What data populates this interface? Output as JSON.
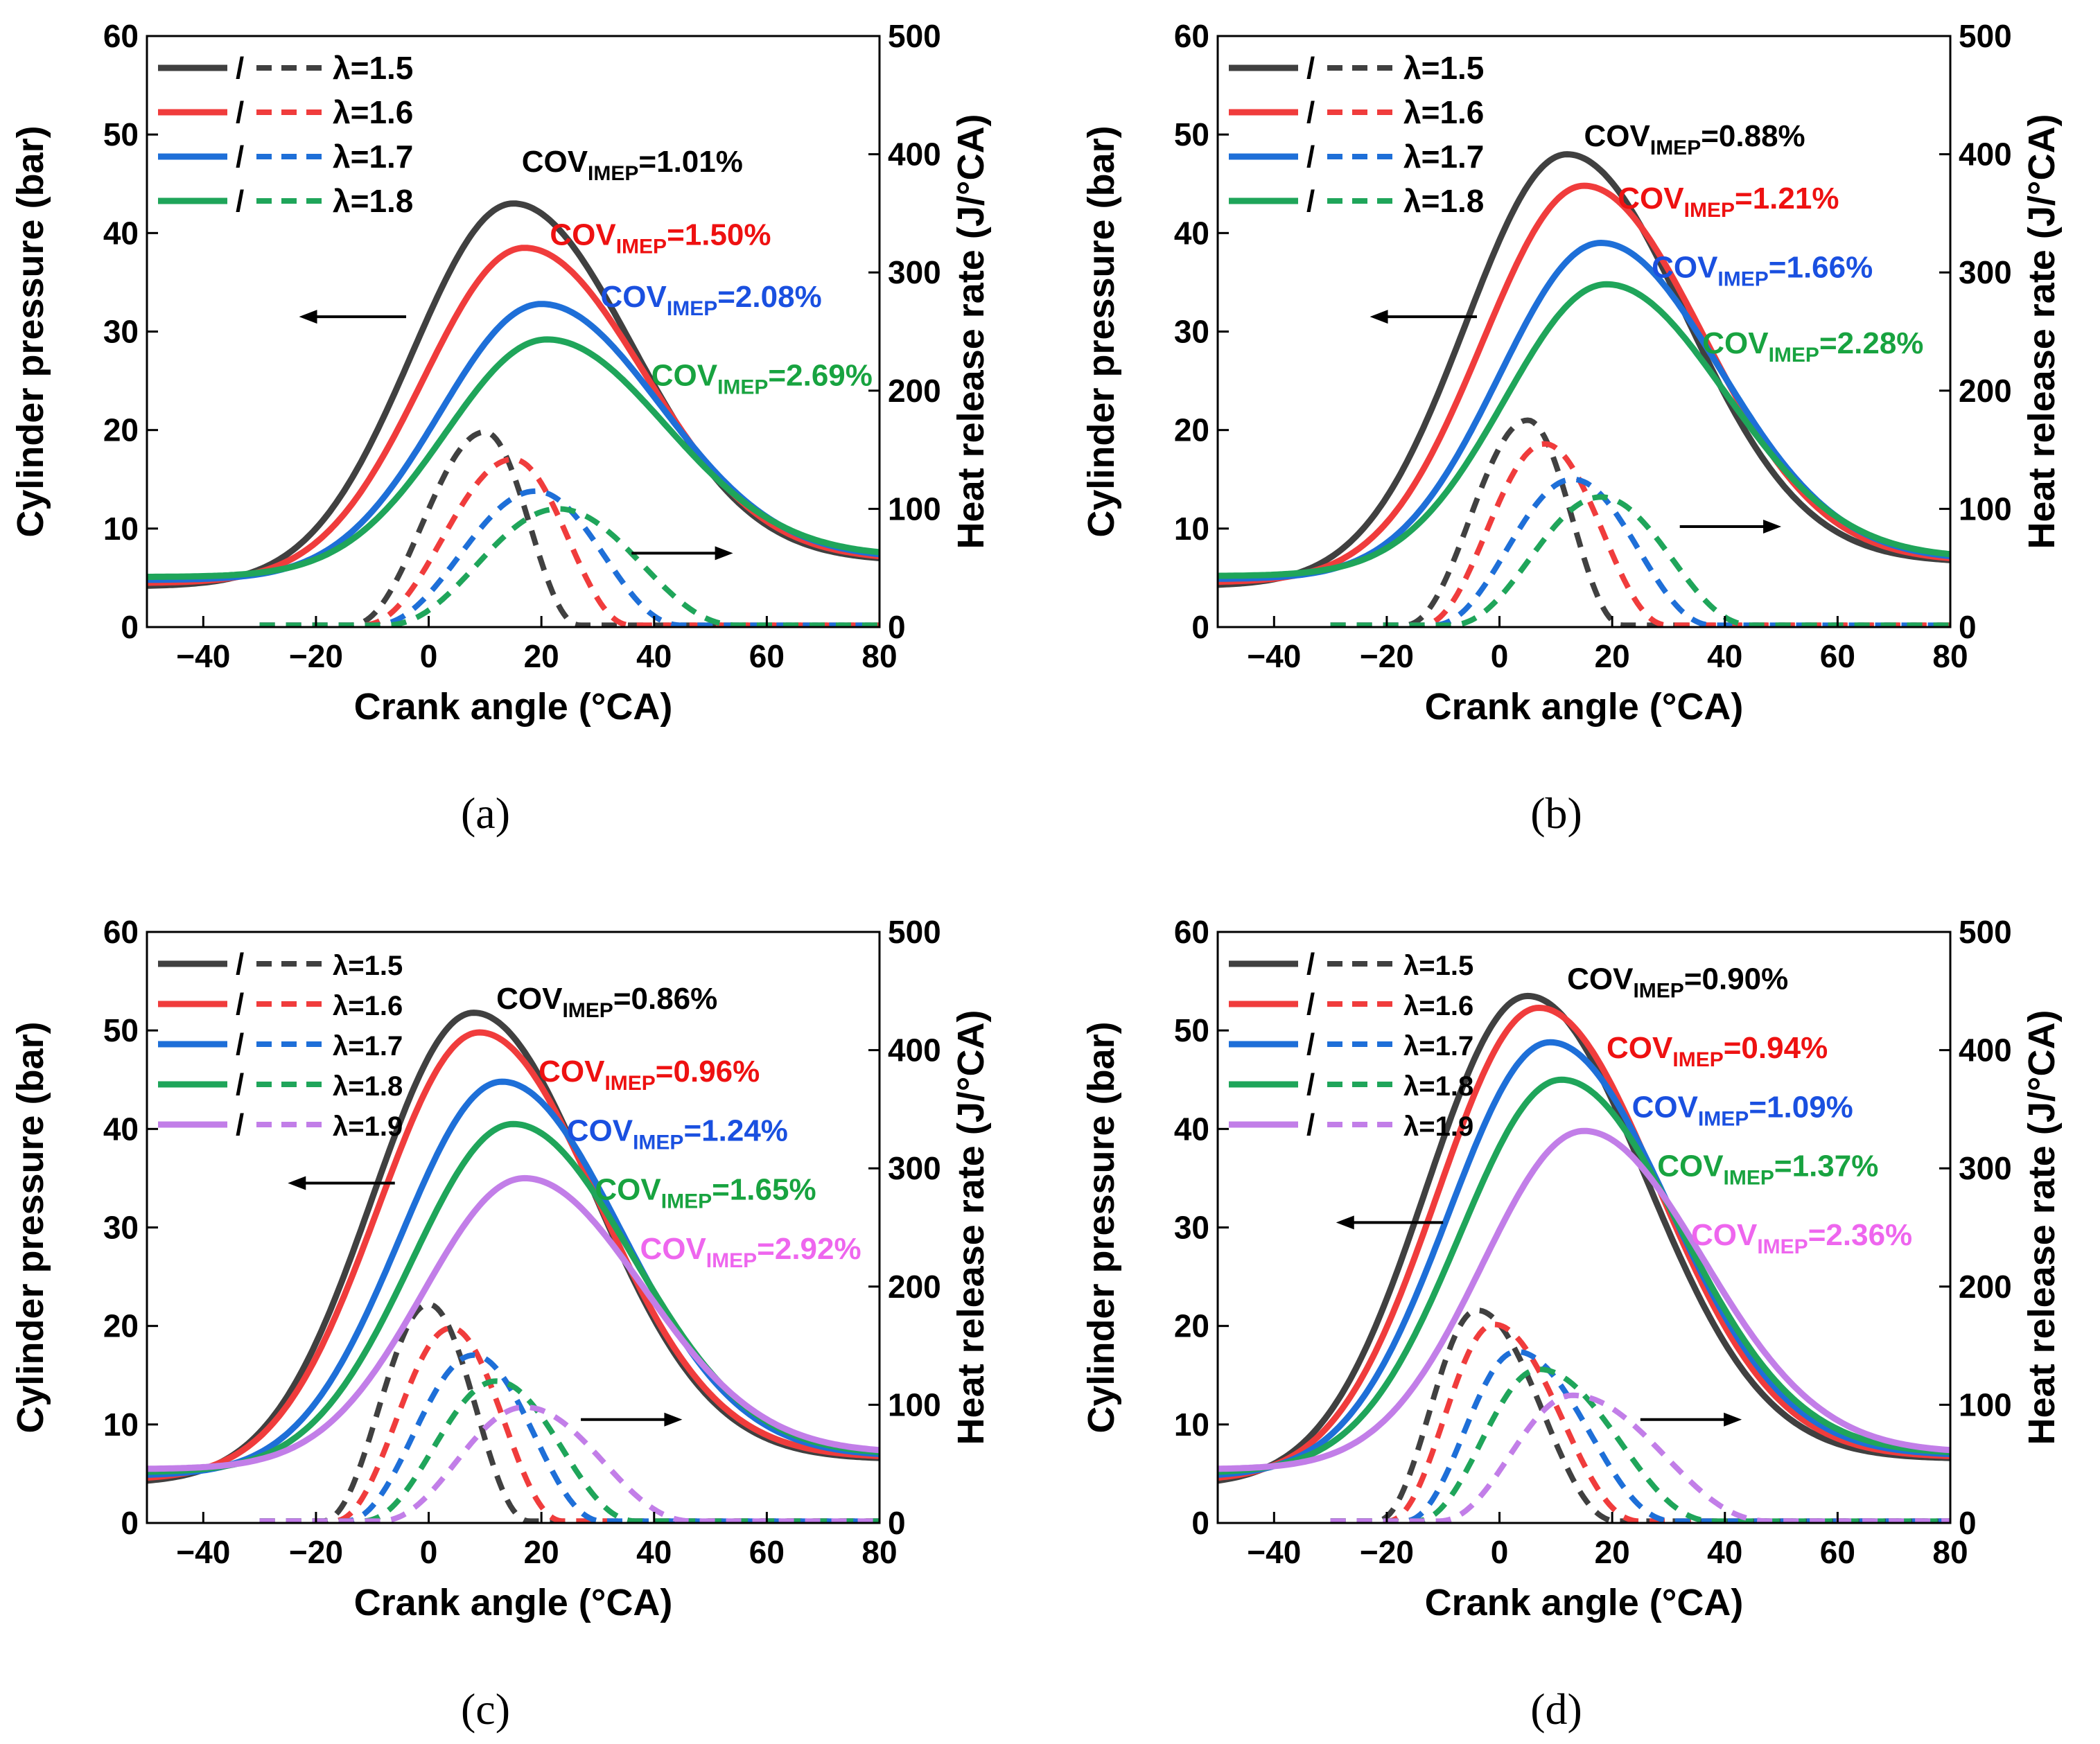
{
  "colors": {
    "1.5": "#404040",
    "1.6": "#f03c3c",
    "1.7": "#1e6fd8",
    "1.8": "#1fa55a",
    "1.9": "#c27ee8",
    "cov_1.5": "#000000",
    "cov_1.6": "#ee1111",
    "cov_1.7": "#1a50e0",
    "cov_1.8": "#18a340",
    "cov_1.9": "#ee66ee"
  },
  "chart_data": [
    {
      "id": "a",
      "caption": "(a)",
      "type": "line",
      "xlabel": "Crank angle (°CA)",
      "ylabel_left": "Cylinder pressure (bar)",
      "ylabel_right": "Heat release rate (J/°CA)",
      "xlim": [
        -50,
        80
      ],
      "xticks": [
        -40,
        -20,
        0,
        20,
        40,
        60,
        80
      ],
      "ylim_left": [
        0,
        60
      ],
      "yticks_left": [
        0,
        10,
        20,
        30,
        40,
        50,
        60
      ],
      "ylim_right": [
        0,
        500
      ],
      "yticks_right": [
        0,
        100,
        200,
        300,
        400,
        500
      ],
      "legend": {
        "position": "top-left",
        "separator": "/",
        "entries": [
          "λ=1.5",
          "λ=1.6",
          "λ=1.7",
          "λ=1.8"
        ]
      },
      "arrows": [
        {
          "direction": "left",
          "x_from": -4,
          "x_to": -23,
          "y": 31.5
        },
        {
          "direction": "right",
          "x_from": 36,
          "x_to": 54,
          "y": 7.5
        }
      ],
      "series": [
        {
          "lambda": "1.5",
          "pressure": {
            "peak_ca": 15,
            "peak": 43.0,
            "start": 4.2,
            "end": 7.0
          },
          "hrr": {
            "peak_ca": 10,
            "peak": 165,
            "start_ca": -14,
            "end_ca": 27
          },
          "cov": {
            "label": "COV",
            "sub": "IMEP",
            "value": "=1.01%",
            "x": 16.5,
            "y": 46.2
          }
        },
        {
          "lambda": "1.6",
          "pressure": {
            "peak_ca": 17,
            "peak": 38.5,
            "start": 4.5,
            "end": 7.2
          },
          "hrr": {
            "peak_ca": 15,
            "peak": 142,
            "start_ca": -12,
            "end_ca": 36
          },
          "cov": {
            "label": "COV",
            "sub": "IMEP",
            "value": "=1.50%",
            "x": 21.5,
            "y": 38.8
          }
        },
        {
          "lambda": "1.7",
          "pressure": {
            "peak_ca": 20,
            "peak": 32.8,
            "start": 4.8,
            "end": 7.4
          },
          "hrr": {
            "peak_ca": 19,
            "peak": 115,
            "start_ca": -10,
            "end_ca": 45
          },
          "cov": {
            "label": "COV",
            "sub": "IMEP",
            "value": "=2.08%",
            "x": 30.5,
            "y": 32.5
          }
        },
        {
          "lambda": "1.8",
          "pressure": {
            "peak_ca": 21,
            "peak": 29.2,
            "start": 5.1,
            "end": 7.6
          },
          "hrr": {
            "peak_ca": 23,
            "peak": 100,
            "start_ca": -8,
            "end_ca": 55
          },
          "cov": {
            "label": "COV",
            "sub": "IMEP",
            "value": "=2.69%",
            "x": 39.5,
            "y": 24.5
          }
        }
      ]
    },
    {
      "id": "b",
      "caption": "(b)",
      "type": "line",
      "xlabel": "Crank angle (°CA)",
      "ylabel_left": "Cylinder pressure (bar)",
      "ylabel_right": "Heat release rate (J/°CA)",
      "xlim": [
        -50,
        80
      ],
      "xticks": [
        -40,
        -20,
        0,
        20,
        40,
        60,
        80
      ],
      "ylim_left": [
        0,
        60
      ],
      "yticks_left": [
        0,
        10,
        20,
        30,
        40,
        50,
        60
      ],
      "ylim_right": [
        0,
        500
      ],
      "yticks_right": [
        0,
        100,
        200,
        300,
        400,
        500
      ],
      "legend": {
        "position": "top-left",
        "separator": "/",
        "entries": [
          "λ=1.5",
          "λ=1.6",
          "λ=1.7",
          "λ=1.8"
        ]
      },
      "arrows": [
        {
          "direction": "left",
          "x_from": -4,
          "x_to": -23,
          "y": 31.5
        },
        {
          "direction": "right",
          "x_from": 32,
          "x_to": 50,
          "y": 10.2
        }
      ],
      "series": [
        {
          "lambda": "1.5",
          "pressure": {
            "peak_ca": 12,
            "peak": 48.0,
            "start": 4.3,
            "end": 6.8
          },
          "hrr": {
            "peak_ca": 5,
            "peak": 175,
            "start_ca": -17,
            "end_ca": 22
          },
          "cov": {
            "label": "COV",
            "sub": "IMEP",
            "value": "=0.88%",
            "x": 15,
            "y": 48.8
          }
        },
        {
          "lambda": "1.6",
          "pressure": {
            "peak_ca": 15,
            "peak": 44.8,
            "start": 4.6,
            "end": 7.0
          },
          "hrr": {
            "peak_ca": 8,
            "peak": 155,
            "start_ca": -14,
            "end_ca": 30
          },
          "cov": {
            "label": "COV",
            "sub": "IMEP",
            "value": "=1.21%",
            "x": 21,
            "y": 42.5
          }
        },
        {
          "lambda": "1.7",
          "pressure": {
            "peak_ca": 18,
            "peak": 39.0,
            "start": 4.9,
            "end": 7.2
          },
          "hrr": {
            "peak_ca": 13,
            "peak": 125,
            "start_ca": -12,
            "end_ca": 38
          },
          "cov": {
            "label": "COV",
            "sub": "IMEP",
            "value": "=1.66%",
            "x": 27,
            "y": 35.5
          }
        },
        {
          "lambda": "1.8",
          "pressure": {
            "peak_ca": 19,
            "peak": 34.8,
            "start": 5.2,
            "end": 7.4
          },
          "hrr": {
            "peak_ca": 18,
            "peak": 110,
            "start_ca": -9,
            "end_ca": 45
          },
          "cov": {
            "label": "COV",
            "sub": "IMEP",
            "value": "=2.28%",
            "x": 36,
            "y": 27.8
          }
        }
      ]
    },
    {
      "id": "c",
      "caption": "(c)",
      "type": "line",
      "xlabel": "Crank angle (°CA)",
      "ylabel_left": "Cylinder pressure (bar)",
      "ylabel_right": "Heat release rate (J/°CA)",
      "xlim": [
        -50,
        80
      ],
      "xticks": [
        -40,
        -20,
        0,
        20,
        40,
        60,
        80
      ],
      "ylim_left": [
        0,
        60
      ],
      "yticks_left": [
        0,
        10,
        20,
        30,
        40,
        50,
        60
      ],
      "ylim_right": [
        0,
        500
      ],
      "yticks_right": [
        0,
        100,
        200,
        300,
        400,
        500
      ],
      "legend": {
        "position": "top-left",
        "separator": "/",
        "entries": [
          "λ=1.5",
          "λ=1.6",
          "λ=1.7",
          "λ=1.8",
          "λ=1.9"
        ]
      },
      "arrows": [
        {
          "direction": "left",
          "x_from": -6,
          "x_to": -25,
          "y": 34.5
        },
        {
          "direction": "right",
          "x_from": 27,
          "x_to": 45,
          "y": 10.5
        }
      ],
      "series": [
        {
          "lambda": "1.5",
          "pressure": {
            "peak_ca": 8,
            "peak": 51.8,
            "start": 4.3,
            "end": 6.6
          },
          "hrr": {
            "peak_ca": 0,
            "peak": 185,
            "start_ca": -19,
            "end_ca": 18
          },
          "cov": {
            "label": "COV",
            "sub": "IMEP",
            "value": "=0.86%",
            "x": 12,
            "y": 52.2
          }
        },
        {
          "lambda": "1.6",
          "pressure": {
            "peak_ca": 9,
            "peak": 49.8,
            "start": 4.6,
            "end": 6.8
          },
          "hrr": {
            "peak_ca": 4,
            "peak": 165,
            "start_ca": -17,
            "end_ca": 24
          },
          "cov": {
            "label": "COV",
            "sub": "IMEP",
            "value": "=0.96%",
            "x": 19.5,
            "y": 44.8
          }
        },
        {
          "lambda": "1.7",
          "pressure": {
            "peak_ca": 13,
            "peak": 44.8,
            "start": 4.9,
            "end": 7.0
          },
          "hrr": {
            "peak_ca": 8,
            "peak": 142,
            "start_ca": -15,
            "end_ca": 31
          },
          "cov": {
            "label": "COV",
            "sub": "IMEP",
            "value": "=1.24%",
            "x": 24.5,
            "y": 38.8
          }
        },
        {
          "lambda": "1.8",
          "pressure": {
            "peak_ca": 15,
            "peak": 40.5,
            "start": 5.2,
            "end": 7.2
          },
          "hrr": {
            "peak_ca": 12,
            "peak": 120,
            "start_ca": -12,
            "end_ca": 37
          },
          "cov": {
            "label": "COV",
            "sub": "IMEP",
            "value": "=1.65%",
            "x": 29.5,
            "y": 32.8
          }
        },
        {
          "lambda": "1.9",
          "pressure": {
            "peak_ca": 17,
            "peak": 35.0,
            "start": 5.5,
            "end": 7.4
          },
          "hrr": {
            "peak_ca": 17,
            "peak": 98,
            "start_ca": -9,
            "end_ca": 47
          },
          "cov": {
            "label": "COV",
            "sub": "IMEP",
            "value": "=2.92%",
            "x": 37.5,
            "y": 26.8
          }
        }
      ]
    },
    {
      "id": "d",
      "caption": "(d)",
      "type": "line",
      "xlabel": "Crank angle (°CA)",
      "ylabel_left": "Cylinder pressure (bar)",
      "ylabel_right": "Heat release rate (J/°CA)",
      "xlim": [
        -50,
        80
      ],
      "xticks": [
        -40,
        -20,
        0,
        20,
        40,
        60,
        80
      ],
      "ylim_left": [
        0,
        60
      ],
      "yticks_left": [
        0,
        10,
        20,
        30,
        40,
        50,
        60
      ],
      "ylim_right": [
        0,
        500
      ],
      "yticks_right": [
        0,
        100,
        200,
        300,
        400,
        500
      ],
      "legend": {
        "position": "top-left",
        "separator": "/",
        "entries": [
          "λ=1.5",
          "λ=1.6",
          "λ=1.7",
          "λ=1.8",
          "λ=1.9"
        ]
      },
      "arrows": [
        {
          "direction": "left",
          "x_from": -10,
          "x_to": -29,
          "y": 30.5
        },
        {
          "direction": "right",
          "x_from": 25,
          "x_to": 43,
          "y": 10.5
        }
      ],
      "series": [
        {
          "lambda": "1.5",
          "pressure": {
            "peak_ca": 5,
            "peak": 53.5,
            "start": 4.3,
            "end": 6.6
          },
          "hrr": {
            "peak_ca": -4,
            "peak": 180,
            "start_ca": -22,
            "end_ca": 21
          },
          "cov": {
            "label": "COV",
            "sub": "IMEP",
            "value": "=0.90%",
            "x": 12,
            "y": 54.2
          }
        },
        {
          "lambda": "1.6",
          "pressure": {
            "peak_ca": 7,
            "peak": 52.3,
            "start": 4.6,
            "end": 6.8
          },
          "hrr": {
            "peak_ca": -1,
            "peak": 168,
            "start_ca": -20,
            "end_ca": 25
          },
          "cov": {
            "label": "COV",
            "sub": "IMEP",
            "value": "=0.94%",
            "x": 19,
            "y": 47.2
          }
        },
        {
          "lambda": "1.7",
          "pressure": {
            "peak_ca": 9,
            "peak": 48.8,
            "start": 4.9,
            "end": 7.0
          },
          "hrr": {
            "peak_ca": 3,
            "peak": 145,
            "start_ca": -17,
            "end_ca": 31
          },
          "cov": {
            "label": "COV",
            "sub": "IMEP",
            "value": "=1.09%",
            "x": 23.5,
            "y": 41.2
          }
        },
        {
          "lambda": "1.8",
          "pressure": {
            "peak_ca": 11,
            "peak": 45.0,
            "start": 5.2,
            "end": 7.2
          },
          "hrr": {
            "peak_ca": 7,
            "peak": 130,
            "start_ca": -15,
            "end_ca": 38
          },
          "cov": {
            "label": "COV",
            "sub": "IMEP",
            "value": "=1.37%",
            "x": 28,
            "y": 35.2
          }
        },
        {
          "lambda": "1.9",
          "pressure": {
            "peak_ca": 15,
            "peak": 39.8,
            "start": 5.5,
            "end": 7.4
          },
          "hrr": {
            "peak_ca": 13,
            "peak": 108,
            "start_ca": -11,
            "end_ca": 48
          },
          "cov": {
            "label": "COV",
            "sub": "IMEP",
            "value": "=2.36%",
            "x": 34,
            "y": 28.2
          }
        }
      ]
    }
  ]
}
